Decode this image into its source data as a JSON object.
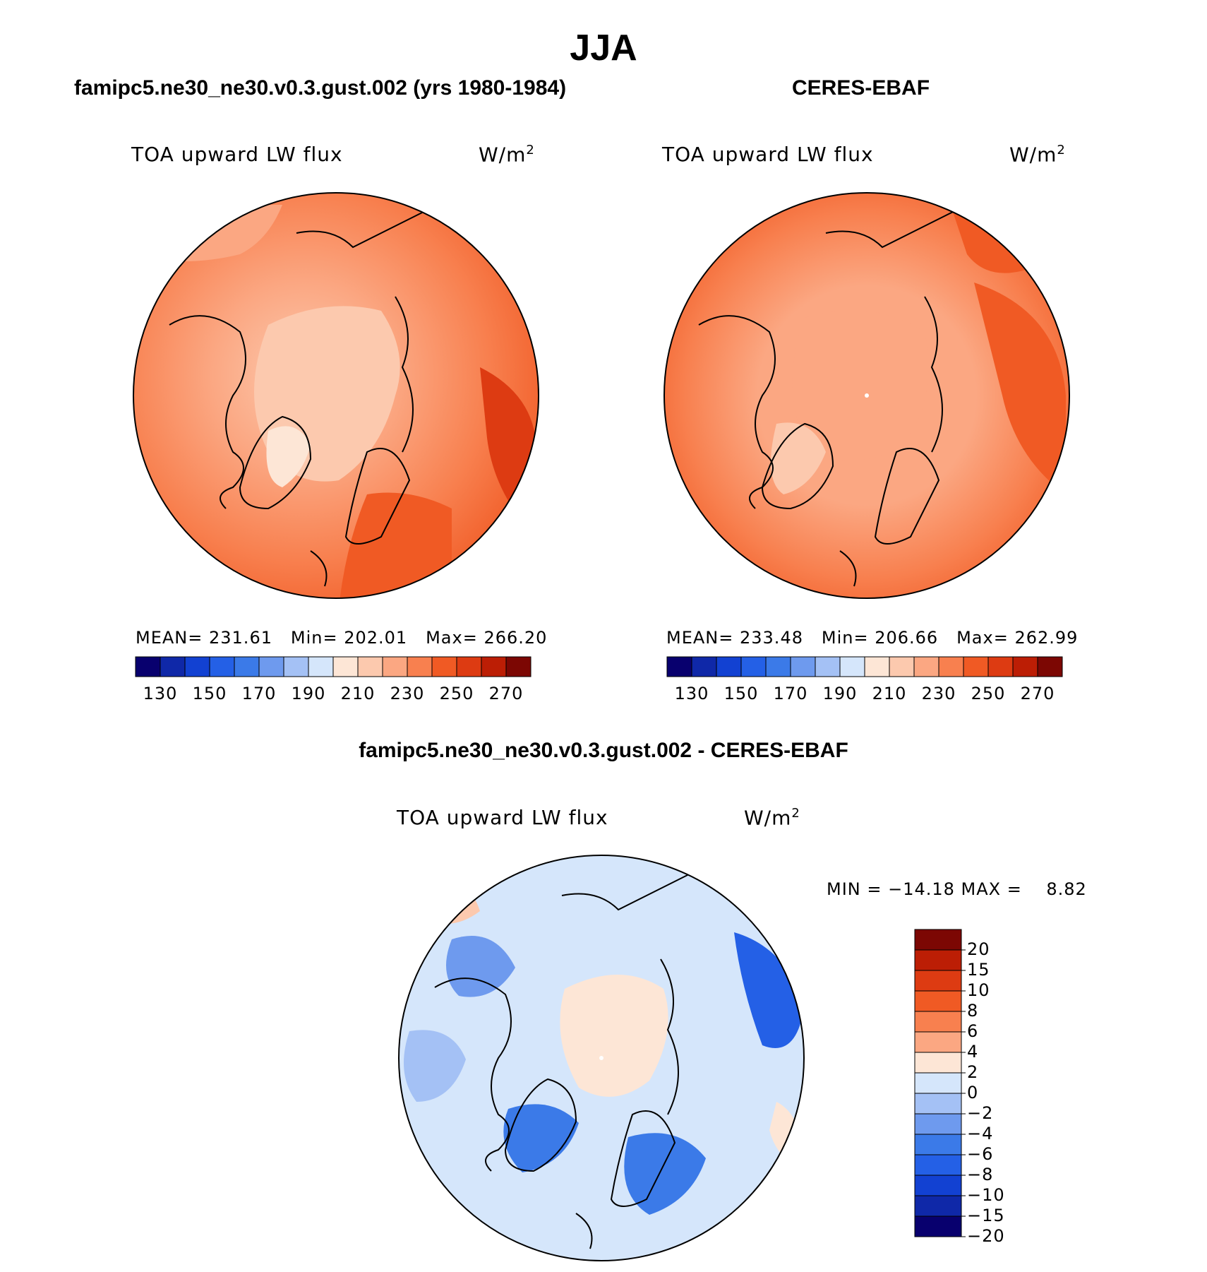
{
  "figure": {
    "title": "JJA",
    "panels": {
      "model": {
        "title": "famipc5.ne30_ne30.v0.3.gust.002 (yrs 1980-1984)",
        "variable": "TOA upward LW flux",
        "units_base": "W/m",
        "units_exp": "2",
        "stats": {
          "mean_label": "MEAN=",
          "mean": "231.61",
          "min_label": "Min=",
          "min": "202.01",
          "max_label": "Max=",
          "max": "266.20"
        }
      },
      "obs": {
        "title": "CERES-EBAF",
        "variable": "TOA upward LW flux",
        "units_base": "W/m",
        "units_exp": "2",
        "stats": {
          "mean_label": "MEAN=",
          "mean": "233.48",
          "min_label": "Min=",
          "min": "206.66",
          "max_label": "Max=",
          "max": "262.99"
        }
      },
      "diff": {
        "title": "famipc5.ne30_ne30.v0.3.gust.002 - CERES-EBAF",
        "variable": "TOA upward LW flux",
        "units_base": "W/m",
        "units_exp": "2",
        "stats_text": "MIN = −14.18 MAX =    8.82"
      }
    }
  },
  "chart_data": [
    {
      "type": "heatmap",
      "projection": "polar-stereographic-north",
      "title": "famipc5.ne30_ne30.v0.3.gust.002 (yrs 1980-1984)",
      "variable": "TOA upward LW flux",
      "units": "W/m2",
      "mean": 231.61,
      "min": 202.01,
      "max": 266.2,
      "colorbar": {
        "levels": [
          130,
          140,
          150,
          160,
          170,
          180,
          190,
          200,
          210,
          220,
          230,
          240,
          250,
          260,
          270
        ],
        "tick_labels": [
          "130",
          "150",
          "170",
          "190",
          "210",
          "230",
          "250",
          "270"
        ],
        "colors": [
          "#08006e",
          "#0f28a8",
          "#1241d2",
          "#2460e6",
          "#3b7ae8",
          "#6e9aee",
          "#a4c1f5",
          "#d5e6fb",
          "#fde6d6",
          "#fcc9ae",
          "#fba782",
          "#f8804f",
          "#f05a24",
          "#dd3b12",
          "#bc1e05",
          "#7c0703"
        ]
      }
    },
    {
      "type": "heatmap",
      "projection": "polar-stereographic-north",
      "title": "CERES-EBAF",
      "variable": "TOA upward LW flux",
      "units": "W/m2",
      "mean": 233.48,
      "min": 206.66,
      "max": 262.99,
      "colorbar": {
        "levels": [
          130,
          140,
          150,
          160,
          170,
          180,
          190,
          200,
          210,
          220,
          230,
          240,
          250,
          260,
          270
        ],
        "tick_labels": [
          "130",
          "150",
          "170",
          "190",
          "210",
          "230",
          "250",
          "270"
        ],
        "colors": [
          "#08006e",
          "#0f28a8",
          "#1241d2",
          "#2460e6",
          "#3b7ae8",
          "#6e9aee",
          "#a4c1f5",
          "#d5e6fb",
          "#fde6d6",
          "#fcc9ae",
          "#fba782",
          "#f8804f",
          "#f05a24",
          "#dd3b12",
          "#bc1e05",
          "#7c0703"
        ]
      }
    },
    {
      "type": "heatmap",
      "projection": "polar-stereographic-north",
      "title": "famipc5.ne30_ne30.v0.3.gust.002 - CERES-EBAF",
      "variable": "TOA upward LW flux",
      "units": "W/m2",
      "min": -14.18,
      "max": 8.82,
      "colorbar": {
        "tick_labels": [
          "20",
          "15",
          "10",
          "8",
          "6",
          "4",
          "2",
          "0",
          "−2",
          "−4",
          "−6",
          "−8",
          "−10",
          "−15",
          "−20"
        ],
        "colors_top_to_bottom": [
          "#7c0703",
          "#bc1e05",
          "#dd3b12",
          "#f05a24",
          "#f8804f",
          "#fba782",
          "#fde6d6",
          "#d5e6fb",
          "#a4c1f5",
          "#6e9aee",
          "#3b7ae8",
          "#2460e6",
          "#1241d2",
          "#0f28a8",
          "#08006e"
        ]
      }
    }
  ]
}
